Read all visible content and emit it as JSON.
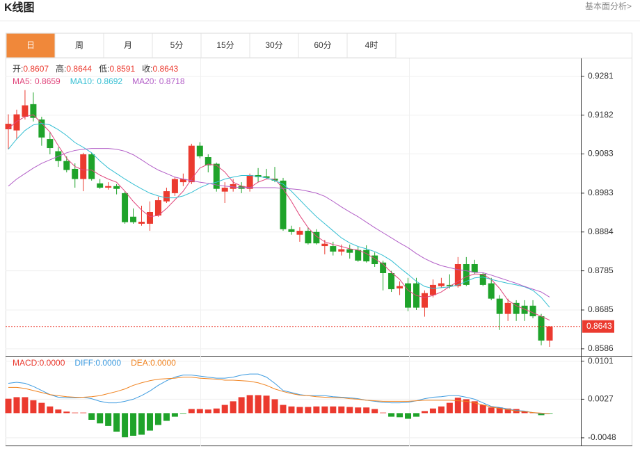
{
  "header": {
    "title": "K线图",
    "link": "基本面分析>"
  },
  "tabs": [
    "日",
    "周",
    "月",
    "5分",
    "15分",
    "30分",
    "60分",
    "4时"
  ],
  "active_tab": 0,
  "chart_data": [
    {
      "type": "candlestick",
      "ohlc_labels": [
        "开:",
        "高:",
        "低:",
        "收:"
      ],
      "candles": {
        "open": [
          0.9146,
          0.9143,
          0.9178,
          0.921,
          0.9171,
          0.9121,
          0.909,
          0.9065,
          0.9045,
          0.9019,
          0.9082,
          0.9008,
          0.8997,
          0.9001,
          0.8983,
          0.8923,
          0.8905,
          0.8905,
          0.8926,
          0.8962,
          0.8983,
          0.9011,
          0.9011,
          0.9104,
          0.9075,
          0.9058,
          0.8987,
          0.8994,
          0.9001,
          0.8994,
          0.9029,
          0.9026,
          0.902,
          0.9015,
          0.8891,
          0.8877,
          0.8887,
          0.8884,
          0.8848,
          0.8848,
          0.8834,
          0.884,
          0.8838,
          0.8838,
          0.8824,
          0.8806,
          0.8779,
          0.874,
          0.8753,
          0.8753,
          0.8691,
          0.8723,
          0.8746,
          0.8749,
          0.8746,
          0.8802,
          0.8802,
          0.8777,
          0.8753,
          0.8714,
          0.8675,
          0.8703,
          0.8696,
          0.8696,
          0.8669,
          0.8607
        ],
        "high": [
          0.9184,
          0.9196,
          0.9246,
          0.924,
          0.9178,
          0.9139,
          0.91,
          0.9077,
          0.9059,
          0.9086,
          0.9086,
          0.9019,
          0.9011,
          0.9006,
          0.8988,
          0.8944,
          0.8951,
          0.8962,
          0.8974,
          0.8997,
          0.9024,
          0.9033,
          0.9109,
          0.9113,
          0.9082,
          0.9061,
          0.9011,
          0.9019,
          0.9011,
          0.9033,
          0.9047,
          0.9045,
          0.905,
          0.9022,
          0.89,
          0.8896,
          0.8896,
          0.8891,
          0.8864,
          0.8859,
          0.8852,
          0.8852,
          0.8847,
          0.885,
          0.8832,
          0.8811,
          0.8785,
          0.8758,
          0.8767,
          0.8767,
          0.8735,
          0.8763,
          0.8767,
          0.8776,
          0.882,
          0.882,
          0.8813,
          0.8781,
          0.8767,
          0.8723,
          0.8714,
          0.871,
          0.871,
          0.871,
          0.8675,
          0.8644
        ],
        "low": [
          0.9095,
          0.9121,
          0.9171,
          0.9166,
          0.9104,
          0.9082,
          0.905,
          0.9036,
          0.8997,
          0.8988,
          0.9015,
          0.8994,
          0.8992,
          0.898,
          0.8905,
          0.8905,
          0.89,
          0.8887,
          0.8923,
          0.8958,
          0.8976,
          0.9001,
          0.9006,
          0.9072,
          0.9036,
          0.8987,
          0.8958,
          0.8987,
          0.8983,
          0.8987,
          0.9011,
          0.9019,
          0.9011,
          0.8887,
          0.8877,
          0.8859,
          0.8852,
          0.8852,
          0.8827,
          0.8824,
          0.8824,
          0.8816,
          0.8808,
          0.8806,
          0.8795,
          0.8735,
          0.8731,
          0.8723,
          0.8682,
          0.8685,
          0.8668,
          0.8717,
          0.8742,
          0.874,
          0.8742,
          0.8746,
          0.8776,
          0.8746,
          0.871,
          0.8634,
          0.8657,
          0.8657,
          0.8657,
          0.8664,
          0.8595,
          0.8591
        ],
        "close": [
          0.916,
          0.9184,
          0.9207,
          0.9175,
          0.9125,
          0.9098,
          0.9065,
          0.9042,
          0.9019,
          0.9082,
          0.9019,
          0.8997,
          0.9001,
          0.8994,
          0.8909,
          0.8909,
          0.891,
          0.8935,
          0.8965,
          0.8988,
          0.9019,
          0.9019,
          0.9104,
          0.9077,
          0.9054,
          0.8994,
          0.8997,
          0.9006,
          0.8994,
          0.9029,
          0.9024,
          0.9022,
          0.9015,
          0.8891,
          0.8884,
          0.8887,
          0.8855,
          0.8855,
          0.8854,
          0.8834,
          0.884,
          0.8831,
          0.8811,
          0.8809,
          0.8802,
          0.8779,
          0.8738,
          0.8746,
          0.8691,
          0.8691,
          0.8728,
          0.8749,
          0.8753,
          0.8746,
          0.8802,
          0.8749,
          0.8781,
          0.8749,
          0.8714,
          0.8675,
          0.8703,
          0.8675,
          0.8675,
          0.8669,
          0.8607,
          0.8643
        ]
      },
      "up_color": "#eb3a2f",
      "down_color": "#1fa32a",
      "series": [
        {
          "name": "MA5:",
          "color": "#e0457b",
          "values": [
            0.9148,
            0.9166,
            0.9178,
            0.9183,
            0.9161,
            0.9139,
            0.9104,
            0.9072,
            0.9051,
            0.9042,
            0.9042,
            0.9029,
            0.9019,
            0.9011,
            0.8988,
            0.8962,
            0.894,
            0.8923,
            0.8926,
            0.8944,
            0.8966,
            0.8988,
            0.9019,
            0.9047,
            0.9057,
            0.9054,
            0.9037,
            0.9011,
            0.9001,
            0.8997,
            0.9011,
            0.9019,
            0.9019,
            0.8994,
            0.8962,
            0.8926,
            0.8895,
            0.8873,
            0.8859,
            0.8852,
            0.8847,
            0.8841,
            0.8838,
            0.8829,
            0.8816,
            0.8802,
            0.8781,
            0.8763,
            0.8735,
            0.8722,
            0.8717,
            0.8722,
            0.8731,
            0.8745,
            0.8758,
            0.877,
            0.8777,
            0.8776,
            0.8763,
            0.874,
            0.871,
            0.8696,
            0.8687,
            0.8678,
            0.8669,
            0.8659
          ]
        },
        {
          "name": "MA10:",
          "color": "#35bfd3",
          "values": [
            0.9095,
            0.9121,
            0.9143,
            0.9157,
            0.9161,
            0.9157,
            0.9145,
            0.913,
            0.9112,
            0.91,
            0.9086,
            0.9065,
            0.9047,
            0.9033,
            0.9019,
            0.9006,
            0.8994,
            0.8983,
            0.8976,
            0.8971,
            0.8971,
            0.8976,
            0.8985,
            0.8997,
            0.9006,
            0.9011,
            0.9019,
            0.9024,
            0.9028,
            0.9028,
            0.9026,
            0.9022,
            0.9015,
            0.9006,
            0.8988,
            0.8966,
            0.8944,
            0.8923,
            0.8905,
            0.8887,
            0.8869,
            0.8856,
            0.8847,
            0.8841,
            0.8834,
            0.8824,
            0.8811,
            0.8793,
            0.8776,
            0.8758,
            0.8745,
            0.874,
            0.8742,
            0.8744,
            0.8749,
            0.8758,
            0.8767,
            0.8769,
            0.8763,
            0.8758,
            0.8753,
            0.8749,
            0.8744,
            0.8735,
            0.8717,
            0.8692
          ]
        },
        {
          "name": "MA20:",
          "color": "#b25ec7",
          "values": [
            0.9001,
            0.9019,
            0.9033,
            0.9047,
            0.9059,
            0.9068,
            0.9077,
            0.9086,
            0.9092,
            0.9095,
            0.9097,
            0.9097,
            0.9097,
            0.9095,
            0.909,
            0.9081,
            0.9068,
            0.9054,
            0.9042,
            0.9033,
            0.9024,
            0.9019,
            0.9015,
            0.9011,
            0.9008,
            0.9004,
            0.9001,
            0.8999,
            0.8997,
            0.8997,
            0.8997,
            0.8997,
            0.8997,
            0.8995,
            0.8994,
            0.8992,
            0.8988,
            0.8983,
            0.8975,
            0.8962,
            0.8948,
            0.8935,
            0.8923,
            0.8909,
            0.8895,
            0.8882,
            0.8869,
            0.8856,
            0.8844,
            0.8829,
            0.8816,
            0.8806,
            0.8798,
            0.8793,
            0.8788,
            0.8785,
            0.8781,
            0.878,
            0.8774,
            0.8767,
            0.876,
            0.8753,
            0.8745,
            0.8738,
            0.8731,
            0.8718
          ]
        }
      ],
      "ylim": [
        0.8568,
        0.9325
      ],
      "yticks": [
        0.9281,
        0.9182,
        0.9083,
        0.8983,
        0.8884,
        0.8785,
        0.8685,
        0.8586
      ],
      "grid": true,
      "last_price_line": true
    },
    {
      "type": "macd",
      "legend": [
        {
          "name": "MACD:",
          "value": "0.0000",
          "color": "#eb3a2f"
        },
        {
          "name": "DIFF:",
          "value": "0.0000",
          "color": "#3d9be0"
        },
        {
          "name": "DEA:",
          "value": "0.0000",
          "color": "#f0821e"
        }
      ],
      "values": [
        0.0028,
        0.0031,
        0.0031,
        0.0025,
        0.002,
        0.0013,
        0.0007,
        0.0003,
        0.0001,
        0.0001,
        -0.0013,
        -0.002,
        -0.0025,
        -0.0036,
        -0.0047,
        -0.0044,
        -0.0042,
        -0.0034,
        -0.0023,
        -0.0015,
        -0.0007,
        -0.0001,
        0.0008,
        0.0008,
        0.0007,
        0.0009,
        0.0016,
        0.0023,
        0.0031,
        0.0035,
        0.0035,
        0.0034,
        0.0027,
        0.0016,
        0.0013,
        0.0012,
        0.0012,
        0.0013,
        0.0013,
        0.0013,
        0.0013,
        0.0012,
        0.0011,
        0.0011,
        0.0008,
        0.0001,
        -0.0007,
        -0.0008,
        -0.0011,
        -0.0007,
        0.0004,
        0.0009,
        0.0013,
        0.002,
        0.003,
        0.0027,
        0.0023,
        0.0016,
        0.0011,
        0.0011,
        0.0009,
        0.0008,
        0.0004,
        0.0001,
        -0.0004,
        -0.0001
      ],
      "up_color": "#eb3a2f",
      "down_color": "#1fa32a",
      "series": [
        {
          "name": "DIFF:",
          "color": "#3d9be0",
          "values": [
            0.0058,
            0.006,
            0.0058,
            0.0052,
            0.0044,
            0.0036,
            0.0031,
            0.003,
            0.003,
            0.0031,
            0.0028,
            0.0023,
            0.002,
            0.002,
            0.0023,
            0.0027,
            0.0034,
            0.0043,
            0.0054,
            0.0063,
            0.007,
            0.0074,
            0.0074,
            0.0072,
            0.007,
            0.0068,
            0.0068,
            0.007,
            0.0074,
            0.0076,
            0.0076,
            0.007,
            0.0058,
            0.0044,
            0.004,
            0.0036,
            0.0034,
            0.0034,
            0.0034,
            0.0032,
            0.0031,
            0.003,
            0.0028,
            0.0025,
            0.0023,
            0.0021,
            0.002,
            0.002,
            0.0021,
            0.0024,
            0.0028,
            0.0031,
            0.0032,
            0.0034,
            0.0034,
            0.0031,
            0.0027,
            0.002,
            0.0013,
            0.0011,
            0.0008,
            0.0005,
            0.0004,
            0.0001,
            -0.0001,
            -0.0001
          ]
        },
        {
          "name": "DEA:",
          "color": "#f0821e",
          "values": [
            0.005,
            0.005,
            0.0048,
            0.0044,
            0.004,
            0.0036,
            0.0034,
            0.0032,
            0.0031,
            0.0031,
            0.0032,
            0.0034,
            0.0038,
            0.0042,
            0.0047,
            0.0054,
            0.0059,
            0.0063,
            0.0066,
            0.0067,
            0.0068,
            0.007,
            0.007,
            0.0068,
            0.0067,
            0.0066,
            0.0064,
            0.0064,
            0.0063,
            0.0062,
            0.0059,
            0.0054,
            0.0047,
            0.0042,
            0.0038,
            0.0035,
            0.0034,
            0.0032,
            0.0031,
            0.003,
            0.003,
            0.0028,
            0.0027,
            0.0025,
            0.0024,
            0.0023,
            0.0023,
            0.0023,
            0.0023,
            0.0024,
            0.0025,
            0.0025,
            0.0025,
            0.0025,
            0.0024,
            0.0023,
            0.002,
            0.0016,
            0.0012,
            0.0009,
            0.0007,
            0.0004,
            0.0003,
            0.0001,
            0,
            -0.0001
          ]
        }
      ],
      "ylim": [
        -0.0063,
        0.011
      ],
      "yticks": [
        0.0101,
        0.0027,
        -0.0048
      ],
      "grid": true
    }
  ]
}
